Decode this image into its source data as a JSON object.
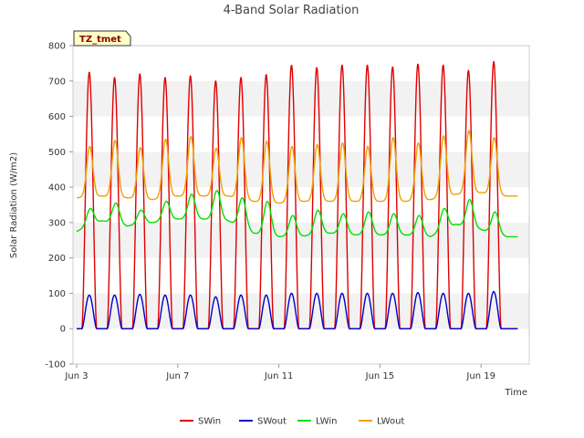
{
  "chart_data": {
    "type": "line",
    "title": "4-Band Solar Radiation",
    "xlabel": "Time",
    "ylabel": "Solar Radiation (W/m2)",
    "badge": "TZ_tmet",
    "ylim": [
      -100,
      800
    ],
    "yticks": [
      -100,
      0,
      100,
      200,
      300,
      400,
      500,
      600,
      700,
      800
    ],
    "xlim": [
      "2022-06-03",
      "2022-06-21"
    ],
    "xticks": [
      {
        "date": "2022-06-03",
        "label": "Jun 3"
      },
      {
        "date": "2022-06-07",
        "label": "Jun 7"
      },
      {
        "date": "2022-06-11",
        "label": "Jun 11"
      },
      {
        "date": "2022-06-15",
        "label": "Jun 15"
      },
      {
        "date": "2022-06-19",
        "label": "Jun 19"
      }
    ],
    "grid": "horizontal alternating bands",
    "legend_position": "bottom",
    "daily_summary": {
      "days": [
        "Jun 3",
        "Jun 4",
        "Jun 5",
        "Jun 6",
        "Jun 7",
        "Jun 8",
        "Jun 9",
        "Jun 10",
        "Jun 11",
        "Jun 12",
        "Jun 13",
        "Jun 14",
        "Jun 15",
        "Jun 16",
        "Jun 17",
        "Jun 18",
        "Jun 19",
        "Jun 20"
      ],
      "series": [
        {
          "name": "SWin",
          "color": "#e00000",
          "night": [
            0,
            0,
            0,
            0,
            0,
            0,
            0,
            0,
            0,
            0,
            0,
            0,
            0,
            0,
            0,
            0,
            0,
            0
          ],
          "peak": [
            725,
            710,
            720,
            710,
            715,
            700,
            710,
            718,
            745,
            738,
            745,
            745,
            740,
            748,
            745,
            730,
            755,
            0
          ]
        },
        {
          "name": "SWout",
          "color": "#0000cc",
          "night": [
            0,
            0,
            0,
            0,
            0,
            0,
            0,
            0,
            0,
            0,
            0,
            0,
            0,
            0,
            0,
            0,
            0,
            0
          ],
          "peak": [
            95,
            95,
            97,
            95,
            95,
            90,
            95,
            95,
            100,
            100,
            100,
            100,
            100,
            102,
            100,
            100,
            105,
            0
          ]
        },
        {
          "name": "LWin",
          "color": "#00e000",
          "night": [
            275,
            305,
            290,
            300,
            310,
            310,
            305,
            270,
            260,
            262,
            270,
            265,
            265,
            265,
            260,
            295,
            280,
            260
          ],
          "peak": [
            340,
            355,
            335,
            360,
            380,
            390,
            370,
            360,
            320,
            335,
            325,
            330,
            325,
            320,
            340,
            365,
            330,
            0
          ]
        },
        {
          "name": "LWout",
          "color": "#f0a000",
          "night": [
            370,
            375,
            370,
            365,
            375,
            375,
            375,
            360,
            355,
            360,
            360,
            360,
            360,
            360,
            365,
            380,
            385,
            375
          ],
          "peak": [
            515,
            532,
            512,
            535,
            543,
            510,
            540,
            530,
            515,
            520,
            525,
            515,
            540,
            525,
            545,
            560,
            540,
            0
          ]
        }
      ]
    }
  },
  "legend": [
    {
      "name": "SWin",
      "color": "#e00000"
    },
    {
      "name": "SWout",
      "color": "#0000cc"
    },
    {
      "name": "LWin",
      "color": "#00e000"
    },
    {
      "name": "LWout",
      "color": "#f0a000"
    }
  ]
}
